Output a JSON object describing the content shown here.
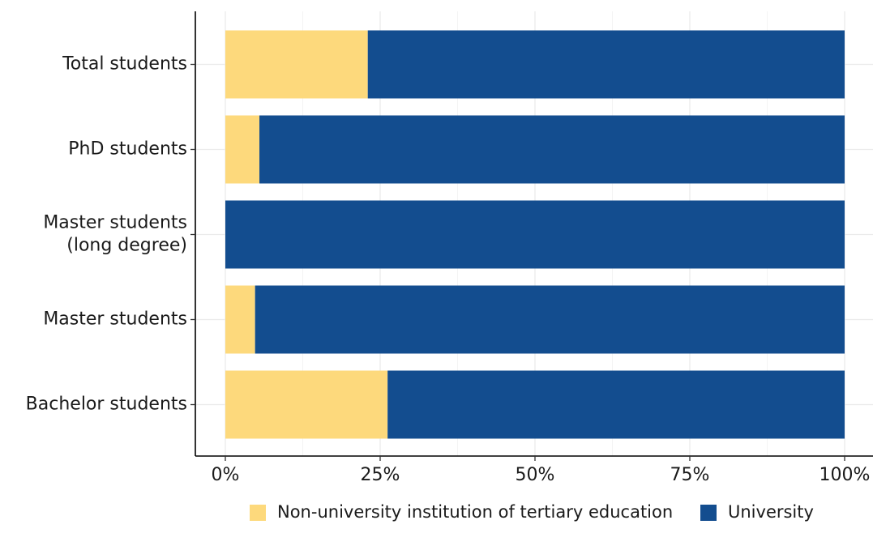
{
  "chart_data": {
    "type": "bar",
    "orientation": "horizontal",
    "stacked": true,
    "categories": [
      [
        "Total students"
      ],
      [
        "PhD students"
      ],
      [
        "Master students",
        "(long degree)"
      ],
      [
        "Master students"
      ],
      [
        "Bachelor students"
      ]
    ],
    "series": [
      {
        "name": "Non-university institution of tertiary education",
        "color": "#FDD97C",
        "values": [
          23,
          5.5,
          0,
          4.8,
          26.2
        ]
      },
      {
        "name": "University",
        "color": "#134D8F",
        "values": [
          77,
          94.5,
          100,
          95.2,
          73.8
        ]
      }
    ],
    "xticks": [
      "0%",
      "25%",
      "50%",
      "75%",
      "100%"
    ],
    "xtick_values": [
      0,
      25,
      50,
      75,
      100
    ],
    "xlim": [
      0,
      100
    ],
    "grid": true,
    "legend_position": "bottom"
  }
}
